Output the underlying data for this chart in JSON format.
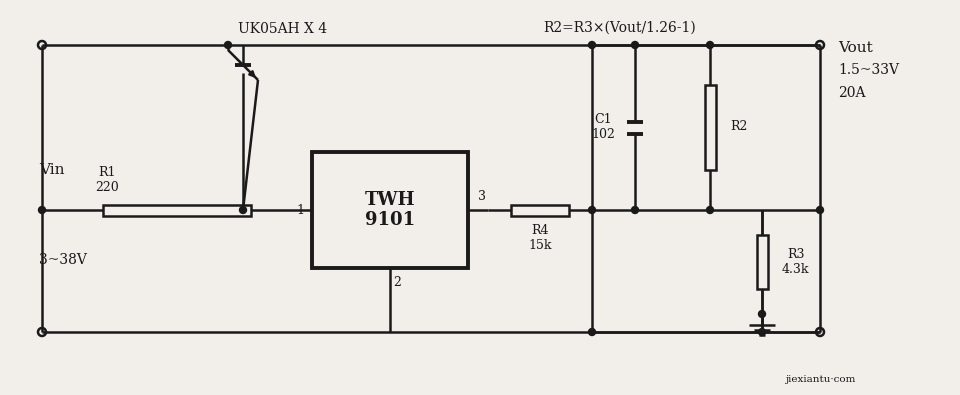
{
  "bg_color": "#f2efea",
  "line_color": "#1a1a1a",
  "lw": 1.8,
  "thick_lw": 2.8,
  "label_uk05ah": "UK05AH X 4",
  "label_formula": "R2=R3×(Vout/1.26-1)",
  "label_vin": "Vin",
  "label_vin_range": "3~38V",
  "label_vout": "Vout",
  "label_vout_range": "1.5~33V",
  "label_vout_current": "20A",
  "label_r1": "R1\n220",
  "label_r2": "R2",
  "label_r3": "R3\n4.3k",
  "label_r4": "R4\n15k",
  "label_c1": "C1\n102",
  "label_twh": "TWH\n9101",
  "label_pin1": "1",
  "label_pin2": "2",
  "label_pin3": "3",
  "label_watermark": "jiexiantu·com"
}
